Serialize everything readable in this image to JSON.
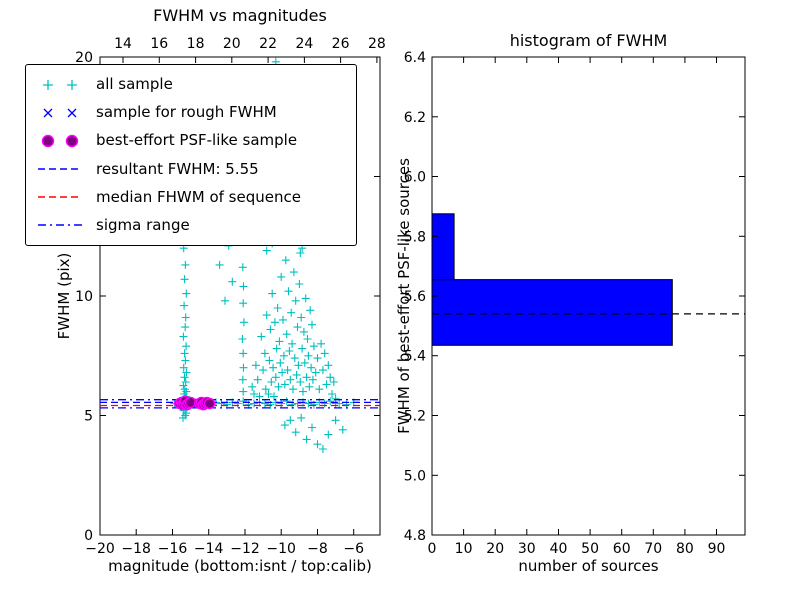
{
  "figure": {
    "background": "#ffffff"
  },
  "legend": {
    "items": [
      {
        "label": "all sample",
        "marker": "plus",
        "color": "#00bfbf"
      },
      {
        "label": "sample for rough FWHM",
        "marker": "x",
        "color": "#0000ff"
      },
      {
        "label": "best-effort PSF-like sample",
        "marker": "circle",
        "color": "#800080",
        "edge": "#ff00ff"
      },
      {
        "label": "resultant FWHM: 5.55",
        "marker": "dashed",
        "color": "#0000ff"
      },
      {
        "label": "median FHWM of sequence",
        "marker": "dashed",
        "color": "#ff0000"
      },
      {
        "label": "sigma range",
        "marker": "dashdot",
        "color": "#0000ff"
      }
    ]
  },
  "chart_data": [
    {
      "type": "scatter",
      "title": "FWHM vs magnitudes",
      "xlabel": "magnitude (bottom:isnt / top:calib)",
      "ylabel": "FWHM (pix)",
      "xlim": [
        -20,
        -4.55
      ],
      "top_xlim": [
        12.73,
        28.17
      ],
      "ylim": [
        0,
        20
      ],
      "x_ticks_bottom": [
        -20,
        -18,
        -16,
        -14,
        -12,
        -10,
        -8,
        -6
      ],
      "x_ticks_top": [
        14,
        16,
        18,
        20,
        22,
        24,
        26,
        28
      ],
      "y_ticks": [
        0,
        5,
        10,
        15,
        20
      ],
      "hlines": [
        {
          "name": "sigma range upper",
          "y": 5.66,
          "color": "#0000ff",
          "style": "dashdot"
        },
        {
          "name": "resultant FWHM",
          "y": 5.55,
          "color": "#0000ff",
          "style": "dashed"
        },
        {
          "name": "median FWHM of sequence",
          "y": 5.42,
          "color": "#ff0000",
          "style": "dashed"
        },
        {
          "name": "sigma range lower",
          "y": 5.32,
          "color": "#0000ff",
          "style": "dashdot"
        }
      ],
      "series": [
        {
          "name": "all sample",
          "marker": "plus",
          "color": "#00bfbf",
          "points": [
            [
              -15.42,
              4.9
            ],
            [
              -15.3,
              5.0
            ],
            [
              -15.25,
              5.1
            ],
            [
              -15.38,
              5.2
            ],
            [
              -15.28,
              5.3
            ],
            [
              -15.35,
              5.4
            ],
            [
              -15.22,
              5.5
            ],
            [
              -15.4,
              5.6
            ],
            [
              -15.3,
              5.7
            ],
            [
              -15.26,
              5.8
            ],
            [
              -15.36,
              5.9
            ],
            [
              -15.24,
              6.0
            ],
            [
              -15.32,
              6.1
            ],
            [
              -15.4,
              6.25
            ],
            [
              -15.27,
              6.4
            ],
            [
              -15.34,
              6.6
            ],
            [
              -15.23,
              6.8
            ],
            [
              -15.38,
              7.0
            ],
            [
              -15.29,
              7.3
            ],
            [
              -15.33,
              7.6
            ],
            [
              -15.25,
              7.9
            ],
            [
              -15.4,
              8.3
            ],
            [
              -15.3,
              8.7
            ],
            [
              -15.27,
              9.1
            ],
            [
              -15.36,
              9.6
            ],
            [
              -15.24,
              10.1
            ],
            [
              -15.33,
              10.7
            ],
            [
              -15.29,
              11.3
            ],
            [
              -15.38,
              12.0
            ],
            [
              -15.26,
              12.8
            ],
            [
              -15.9,
              5.5
            ],
            [
              -15.7,
              5.45
            ],
            [
              -15.1,
              5.55
            ],
            [
              -14.8,
              5.5
            ],
            [
              -14.5,
              5.6
            ],
            [
              -14.2,
              5.45
            ],
            [
              -13.9,
              5.5
            ],
            [
              -13.6,
              5.55
            ],
            [
              -13.3,
              5.5
            ],
            [
              -13.0,
              5.45
            ],
            [
              -12.7,
              5.55
            ],
            [
              -12.4,
              5.5
            ],
            [
              -12.1,
              5.6
            ],
            [
              -11.8,
              5.45
            ],
            [
              -11.5,
              5.5
            ],
            [
              -11.2,
              5.55
            ],
            [
              -10.9,
              5.5
            ],
            [
              -10.6,
              5.45
            ],
            [
              -10.3,
              5.55
            ],
            [
              -10.0,
              5.5
            ],
            [
              -9.7,
              5.6
            ],
            [
              -9.4,
              5.45
            ],
            [
              -9.1,
              5.5
            ],
            [
              -8.8,
              5.55
            ],
            [
              -8.5,
              5.5
            ],
            [
              -8.2,
              5.45
            ],
            [
              -7.9,
              5.55
            ],
            [
              -7.6,
              5.5
            ],
            [
              -7.3,
              5.6
            ],
            [
              -7.0,
              5.5
            ],
            [
              -6.8,
              5.5
            ],
            [
              -6.4,
              5.45
            ],
            [
              -6.0,
              5.55
            ],
            [
              -6.6,
              4.4
            ],
            [
              -12.1,
              6.0
            ],
            [
              -12.12,
              6.5
            ],
            [
              -12.08,
              7.0
            ],
            [
              -12.1,
              7.6
            ],
            [
              -12.14,
              8.2
            ],
            [
              -12.06,
              8.9
            ],
            [
              -12.1,
              9.7
            ],
            [
              -12.08,
              10.4
            ],
            [
              -12.12,
              11.2
            ],
            [
              -11.6,
              6.2
            ],
            [
              -11.5,
              5.9
            ],
            [
              -11.4,
              7.1
            ],
            [
              -11.3,
              6.5
            ],
            [
              -11.2,
              5.8
            ],
            [
              -11.1,
              8.3
            ],
            [
              -11.0,
              6.9
            ],
            [
              -10.9,
              7.6
            ],
            [
              -10.85,
              6.1
            ],
            [
              -10.8,
              9.2
            ],
            [
              -10.7,
              5.9
            ],
            [
              -10.65,
              7.3
            ],
            [
              -10.6,
              8.6
            ],
            [
              -10.55,
              6.4
            ],
            [
              -10.5,
              10.1
            ],
            [
              -10.45,
              7.0
            ],
            [
              -10.4,
              5.8
            ],
            [
              -10.35,
              8.9
            ],
            [
              -10.3,
              6.6
            ],
            [
              -10.25,
              7.8
            ],
            [
              -10.2,
              9.5
            ],
            [
              -10.15,
              6.2
            ],
            [
              -10.1,
              8.1
            ],
            [
              -10.05,
              7.2
            ],
            [
              -10.0,
              10.8
            ],
            [
              -9.95,
              6.8
            ],
            [
              -9.9,
              9.0
            ],
            [
              -9.85,
              7.5
            ],
            [
              -9.8,
              6.3
            ],
            [
              -9.75,
              11.5
            ],
            [
              -9.7,
              8.4
            ],
            [
              -9.65,
              6.9
            ],
            [
              -9.6,
              10.2
            ],
            [
              -9.55,
              7.7
            ],
            [
              -9.5,
              6.5
            ],
            [
              -9.45,
              9.3
            ],
            [
              -9.4,
              8.0
            ],
            [
              -9.35,
              6.1
            ],
            [
              -9.3,
              11.0
            ],
            [
              -9.25,
              7.4
            ],
            [
              -9.2,
              9.8
            ],
            [
              -9.15,
              6.7
            ],
            [
              -9.1,
              8.7
            ],
            [
              -9.05,
              7.1
            ],
            [
              -9.0,
              10.5
            ],
            [
              -8.95,
              6.4
            ],
            [
              -8.9,
              9.1
            ],
            [
              -8.85,
              7.8
            ],
            [
              -8.8,
              6.0
            ],
            [
              -8.75,
              8.5
            ],
            [
              -8.7,
              7.2
            ],
            [
              -8.65,
              9.9
            ],
            [
              -8.6,
              6.6
            ],
            [
              -8.55,
              8.2
            ],
            [
              -8.5,
              7.5
            ],
            [
              -8.45,
              6.2
            ],
            [
              -8.4,
              9.4
            ],
            [
              -8.35,
              7.0
            ],
            [
              -8.3,
              8.8
            ],
            [
              -8.25,
              6.5
            ],
            [
              -8.2,
              7.9
            ],
            [
              -8.1,
              6.8
            ],
            [
              -8.0,
              7.4
            ],
            [
              -7.9,
              6.1
            ],
            [
              -7.8,
              8.0
            ],
            [
              -7.7,
              6.9
            ],
            [
              -7.6,
              7.6
            ],
            [
              -7.5,
              6.3
            ],
            [
              -7.4,
              7.1
            ],
            [
              -7.3,
              6.6
            ],
            [
              -7.2,
              5.9
            ],
            [
              -7.1,
              6.4
            ],
            [
              -7.0,
              5.7
            ],
            [
              -8.95,
              11.8
            ],
            [
              -9.0,
              12.5
            ],
            [
              -8.9,
              13.2
            ],
            [
              -9.05,
              14.0
            ],
            [
              -8.85,
              12.0
            ],
            [
              -9.1,
              13.6
            ],
            [
              -10.8,
              11.9
            ],
            [
              -10.5,
              12.8
            ],
            [
              -11.0,
              13.3
            ],
            [
              -10.2,
              12.3
            ],
            [
              -10.3,
              19.8
            ],
            [
              -10.0,
              19.5
            ],
            [
              -10.6,
              18.9
            ],
            [
              -9.8,
              18.2
            ],
            [
              -10.2,
              17.5
            ],
            [
              -10.9,
              16.8
            ],
            [
              -9.6,
              16.2
            ],
            [
              -10.4,
              15.6
            ],
            [
              -10.1,
              15.0
            ],
            [
              -9.9,
              14.5
            ],
            [
              -11.2,
              14.0
            ],
            [
              -10.7,
              13.5
            ],
            [
              -8.9,
              13.0
            ],
            [
              -9.3,
              12.6
            ],
            [
              -10.5,
              12.2
            ],
            [
              -9.8,
              4.6
            ],
            [
              -9.2,
              4.3
            ],
            [
              -8.6,
              4.0
            ],
            [
              -8.0,
              3.8
            ],
            [
              -7.4,
              4.2
            ],
            [
              -8.3,
              4.5
            ],
            [
              -7.0,
              4.8
            ],
            [
              -9.5,
              4.8
            ],
            [
              -7.7,
              3.6
            ],
            [
              -8.9,
              4.9
            ],
            [
              -13.1,
              9.8
            ],
            [
              -12.7,
              10.6
            ],
            [
              -13.4,
              11.3
            ],
            [
              -12.9,
              12.1
            ]
          ]
        },
        {
          "name": "sample for rough FWHM",
          "marker": "x",
          "color": "#0000ff",
          "points": [
            [
              -15.5,
              5.5
            ],
            [
              -15.4,
              5.55
            ],
            [
              -15.3,
              5.45
            ],
            [
              -15.2,
              5.5
            ],
            [
              -15.1,
              5.6
            ],
            [
              -15.0,
              5.5
            ],
            [
              -14.9,
              5.55
            ],
            [
              -14.8,
              5.45
            ],
            [
              -14.6,
              5.5
            ],
            [
              -14.4,
              5.55
            ],
            [
              -14.2,
              5.5
            ],
            [
              -14.0,
              5.5
            ]
          ]
        },
        {
          "name": "best-effort PSF-like sample",
          "marker": "circle",
          "color": "#800080",
          "edge": "#ff00ff",
          "points": [
            [
              -15.6,
              5.5
            ],
            [
              -15.5,
              5.55
            ],
            [
              -15.45,
              5.45
            ],
            [
              -15.35,
              5.5
            ],
            [
              -15.3,
              5.6
            ],
            [
              -15.2,
              5.45
            ],
            [
              -15.1,
              5.5
            ],
            [
              -15.0,
              5.55
            ],
            [
              -14.5,
              5.5
            ],
            [
              -14.4,
              5.55
            ],
            [
              -14.3,
              5.45
            ],
            [
              -14.2,
              5.5
            ],
            [
              -14.1,
              5.55
            ],
            [
              -13.95,
              5.5
            ]
          ]
        }
      ]
    },
    {
      "type": "bar",
      "orientation": "horizontal",
      "title": "histogram of FWHM",
      "xlabel": "number of sources",
      "ylabel": "FWHM of best-effort PSF-like sources",
      "xlim": [
        0,
        99
      ],
      "ylim": [
        4.8,
        6.4
      ],
      "x_ticks": [
        0,
        10,
        20,
        30,
        40,
        50,
        60,
        70,
        80,
        90
      ],
      "y_ticks": [
        4.8,
        5.0,
        5.2,
        5.4,
        5.6,
        5.8,
        6.0,
        6.2,
        6.4
      ],
      "bar_color": "#0000ff",
      "bar_edge_color": "#000000",
      "bins": [
        {
          "from": 5.435,
          "to": 5.655,
          "count": 76
        },
        {
          "from": 5.655,
          "to": 5.875,
          "count": 7
        }
      ],
      "dashed_line_y": 5.54,
      "dashed_line_color": "#000000"
    }
  ]
}
